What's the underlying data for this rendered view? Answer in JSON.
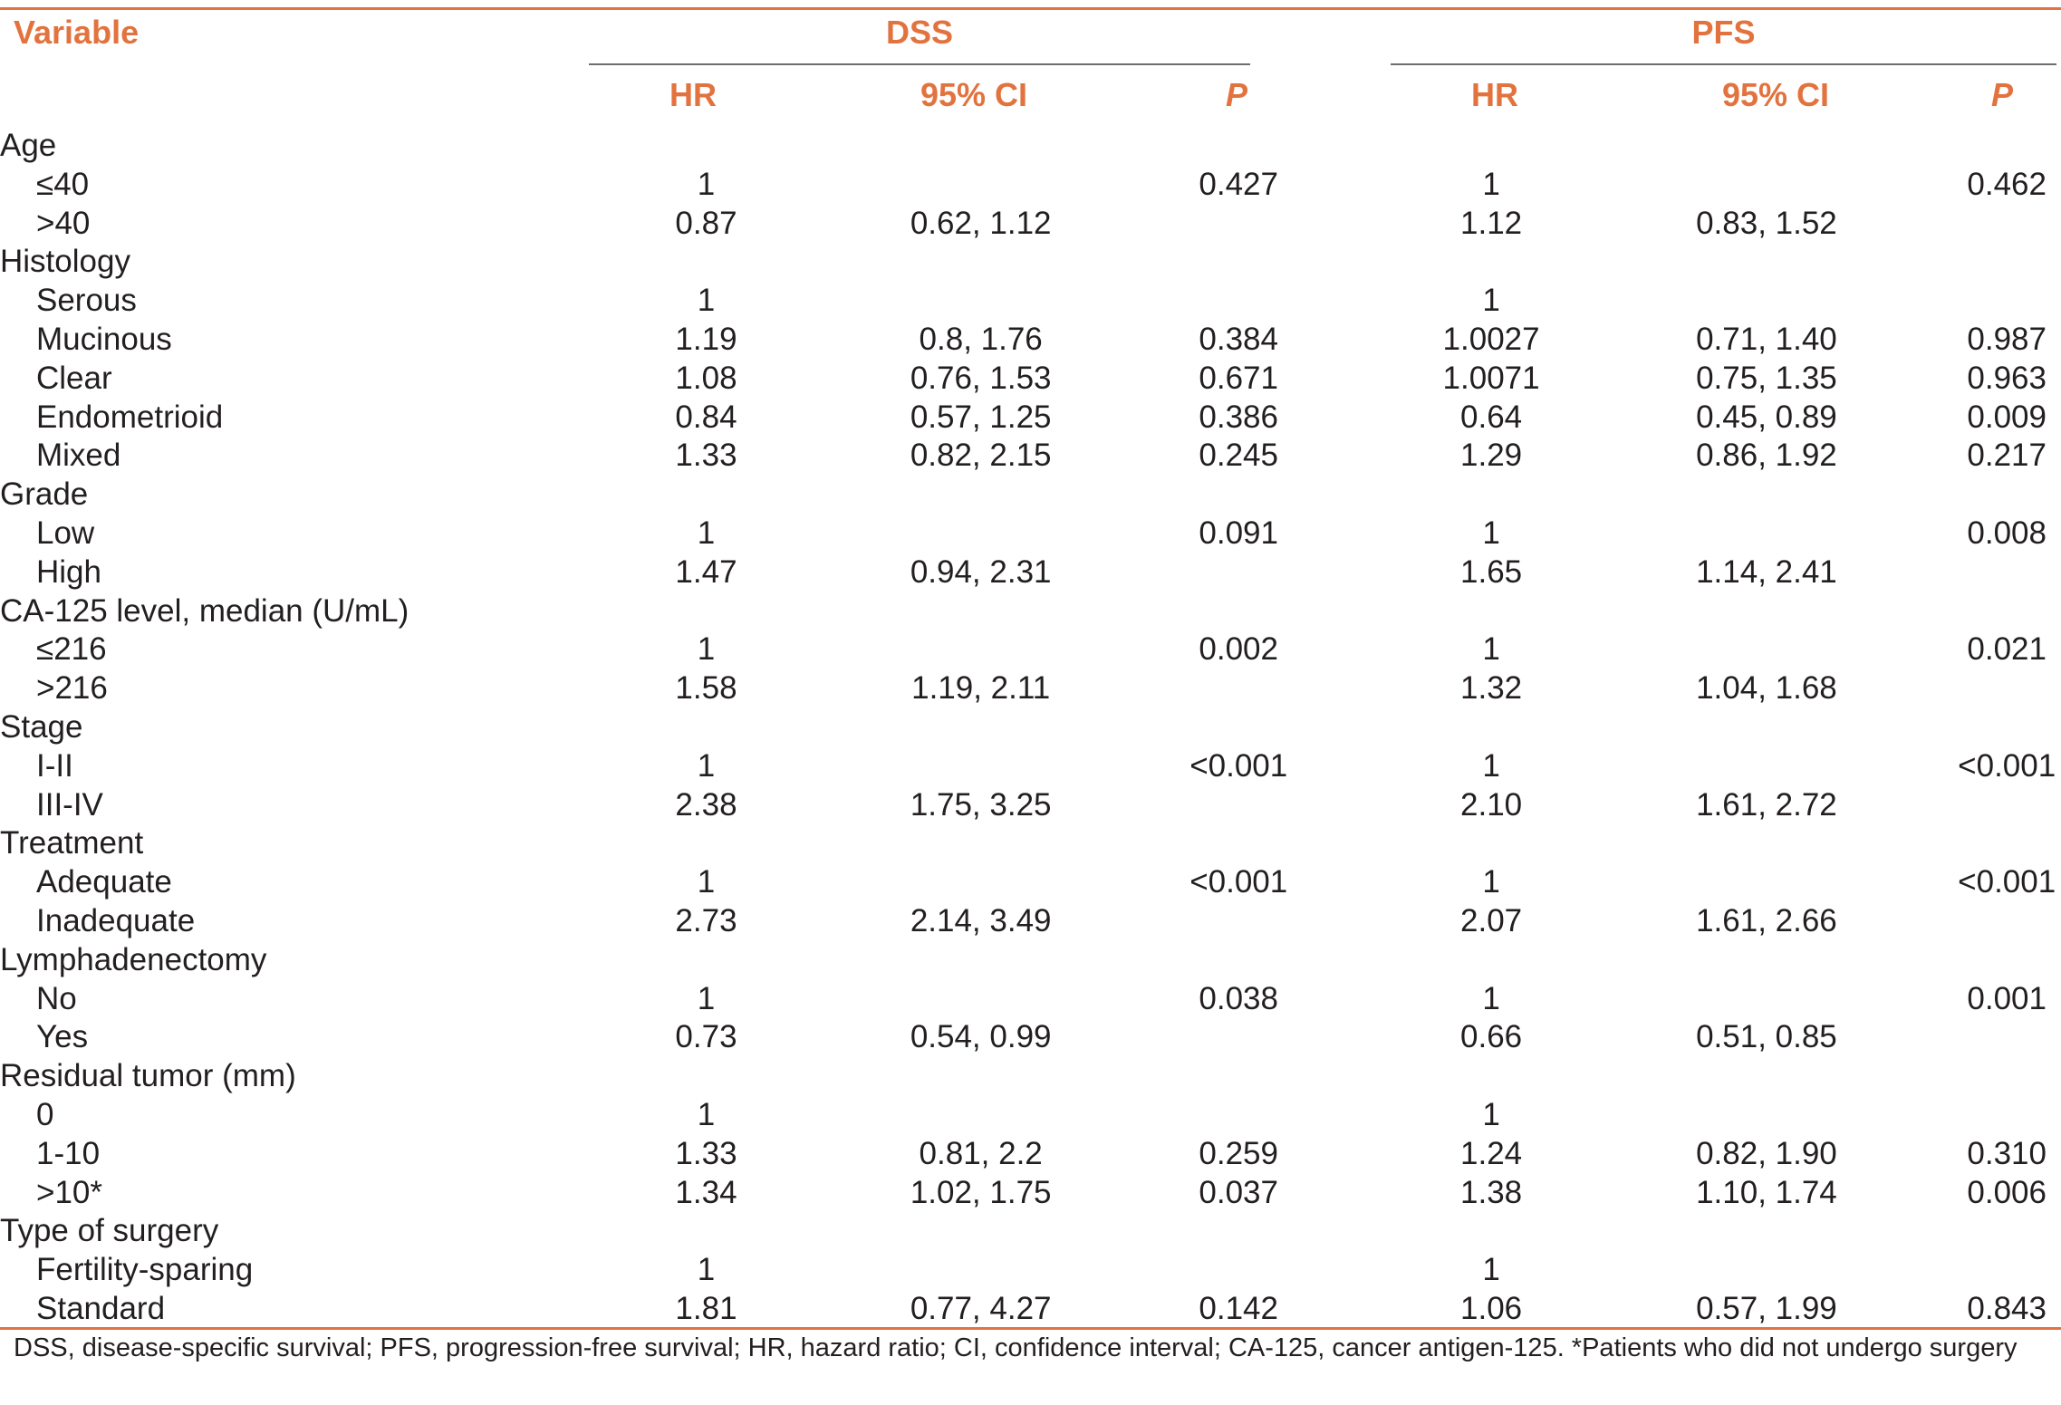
{
  "accent_color": "#e2733f",
  "header": {
    "variable": "Variable",
    "group_dss": "DSS",
    "group_pfs": "PFS",
    "hr": "HR",
    "ci": "95% CI",
    "p": "P"
  },
  "rows": [
    {
      "label": "Age",
      "level": 0,
      "dss_hr": "",
      "dss_ci": "",
      "dss_p": "",
      "pfs_hr": "",
      "pfs_ci": "",
      "pfs_p": ""
    },
    {
      "label": "≤40",
      "level": 1,
      "dss_hr": "1",
      "dss_ci": "",
      "dss_p": "0.427",
      "pfs_hr": "1",
      "pfs_ci": "",
      "pfs_p": "0.462"
    },
    {
      "label": ">40",
      "level": 1,
      "dss_hr": "0.87",
      "dss_ci": "0.62, 1.12",
      "dss_p": "",
      "pfs_hr": "1.12",
      "pfs_ci": "0.83, 1.52",
      "pfs_p": ""
    },
    {
      "label": "Histology",
      "level": 0,
      "dss_hr": "",
      "dss_ci": "",
      "dss_p": "",
      "pfs_hr": "",
      "pfs_ci": "",
      "pfs_p": ""
    },
    {
      "label": "Serous",
      "level": 1,
      "dss_hr": "1",
      "dss_ci": "",
      "dss_p": "",
      "pfs_hr": "1",
      "pfs_ci": "",
      "pfs_p": ""
    },
    {
      "label": "Mucinous",
      "level": 1,
      "dss_hr": "1.19",
      "dss_ci": "0.8, 1.76",
      "dss_p": "0.384",
      "pfs_hr": "1.0027",
      "pfs_ci": "0.71, 1.40",
      "pfs_p": "0.987"
    },
    {
      "label": "Clear",
      "level": 1,
      "dss_hr": "1.08",
      "dss_ci": "0.76, 1.53",
      "dss_p": "0.671",
      "pfs_hr": "1.0071",
      "pfs_ci": "0.75, 1.35",
      "pfs_p": "0.963"
    },
    {
      "label": "Endometrioid",
      "level": 1,
      "dss_hr": "0.84",
      "dss_ci": "0.57, 1.25",
      "dss_p": "0.386",
      "pfs_hr": "0.64",
      "pfs_ci": "0.45, 0.89",
      "pfs_p": "0.009"
    },
    {
      "label": "Mixed",
      "level": 1,
      "dss_hr": "1.33",
      "dss_ci": "0.82, 2.15",
      "dss_p": "0.245",
      "pfs_hr": "1.29",
      "pfs_ci": "0.86, 1.92",
      "pfs_p": "0.217"
    },
    {
      "label": "Grade",
      "level": 0,
      "dss_hr": "",
      "dss_ci": "",
      "dss_p": "",
      "pfs_hr": "",
      "pfs_ci": "",
      "pfs_p": ""
    },
    {
      "label": "Low",
      "level": 1,
      "dss_hr": "1",
      "dss_ci": "",
      "dss_p": "0.091",
      "pfs_hr": "1",
      "pfs_ci": "",
      "pfs_p": "0.008"
    },
    {
      "label": "High",
      "level": 1,
      "dss_hr": "1.47",
      "dss_ci": "0.94, 2.31",
      "dss_p": "",
      "pfs_hr": "1.65",
      "pfs_ci": "1.14, 2.41",
      "pfs_p": ""
    },
    {
      "label": "CA-125 level, median (U/mL)",
      "level": 0,
      "dss_hr": "",
      "dss_ci": "",
      "dss_p": "",
      "pfs_hr": "",
      "pfs_ci": "",
      "pfs_p": ""
    },
    {
      "label": "≤216",
      "level": 1,
      "dss_hr": "1",
      "dss_ci": "",
      "dss_p": "0.002",
      "pfs_hr": "1",
      "pfs_ci": "",
      "pfs_p": "0.021"
    },
    {
      "label": ">216",
      "level": 1,
      "dss_hr": "1.58",
      "dss_ci": "1.19, 2.11",
      "dss_p": "",
      "pfs_hr": "1.32",
      "pfs_ci": "1.04, 1.68",
      "pfs_p": ""
    },
    {
      "label": "Stage",
      "level": 0,
      "dss_hr": "",
      "dss_ci": "",
      "dss_p": "",
      "pfs_hr": "",
      "pfs_ci": "",
      "pfs_p": ""
    },
    {
      "label": "I-II",
      "level": 1,
      "dss_hr": "1",
      "dss_ci": "",
      "dss_p": "<0.001",
      "pfs_hr": "1",
      "pfs_ci": "",
      "pfs_p": "<0.001"
    },
    {
      "label": "III-IV",
      "level": 1,
      "dss_hr": "2.38",
      "dss_ci": "1.75, 3.25",
      "dss_p": "",
      "pfs_hr": "2.10",
      "pfs_ci": "1.61, 2.72",
      "pfs_p": ""
    },
    {
      "label": "Treatment",
      "level": 0,
      "dss_hr": "",
      "dss_ci": "",
      "dss_p": "",
      "pfs_hr": "",
      "pfs_ci": "",
      "pfs_p": ""
    },
    {
      "label": "Adequate",
      "level": 1,
      "dss_hr": "1",
      "dss_ci": "",
      "dss_p": "<0.001",
      "pfs_hr": "1",
      "pfs_ci": "",
      "pfs_p": "<0.001"
    },
    {
      "label": "Inadequate",
      "level": 1,
      "dss_hr": "2.73",
      "dss_ci": "2.14, 3.49",
      "dss_p": "",
      "pfs_hr": "2.07",
      "pfs_ci": "1.61, 2.66",
      "pfs_p": ""
    },
    {
      "label": "Lymphadenectomy",
      "level": 0,
      "dss_hr": "",
      "dss_ci": "",
      "dss_p": "",
      "pfs_hr": "",
      "pfs_ci": "",
      "pfs_p": ""
    },
    {
      "label": "No",
      "level": 1,
      "dss_hr": "1",
      "dss_ci": "",
      "dss_p": "0.038",
      "pfs_hr": "1",
      "pfs_ci": "",
      "pfs_p": "0.001"
    },
    {
      "label": "Yes",
      "level": 1,
      "dss_hr": "0.73",
      "dss_ci": "0.54, 0.99",
      "dss_p": "",
      "pfs_hr": "0.66",
      "pfs_ci": "0.51, 0.85",
      "pfs_p": ""
    },
    {
      "label": "Residual tumor (mm)",
      "level": 0,
      "dss_hr": "",
      "dss_ci": "",
      "dss_p": "",
      "pfs_hr": "",
      "pfs_ci": "",
      "pfs_p": ""
    },
    {
      "label": "0",
      "level": 1,
      "dss_hr": "1",
      "dss_ci": "",
      "dss_p": "",
      "pfs_hr": "1",
      "pfs_ci": "",
      "pfs_p": ""
    },
    {
      "label": "1-10",
      "level": 1,
      "dss_hr": "1.33",
      "dss_ci": "0.81, 2.2",
      "dss_p": "0.259",
      "pfs_hr": "1.24",
      "pfs_ci": "0.82, 1.90",
      "pfs_p": "0.310"
    },
    {
      "label": ">10*",
      "level": 1,
      "dss_hr": "1.34",
      "dss_ci": "1.02, 1.75",
      "dss_p": "0.037",
      "pfs_hr": "1.38",
      "pfs_ci": "1.10, 1.74",
      "pfs_p": "0.006"
    },
    {
      "label": "Type of surgery",
      "level": 0,
      "dss_hr": "",
      "dss_ci": "",
      "dss_p": "",
      "pfs_hr": "",
      "pfs_ci": "",
      "pfs_p": ""
    },
    {
      "label": "Fertility-sparing",
      "level": 1,
      "dss_hr": "1",
      "dss_ci": "",
      "dss_p": "",
      "pfs_hr": "1",
      "pfs_ci": "",
      "pfs_p": ""
    },
    {
      "label": "Standard",
      "level": 1,
      "dss_hr": "1.81",
      "dss_ci": "0.77, 4.27",
      "dss_p": "0.142",
      "pfs_hr": "1.06",
      "pfs_ci": "0.57, 1.99",
      "pfs_p": "0.843"
    }
  ],
  "footnote": "DSS, disease-specific survival; PFS, progression-free survival; HR, hazard ratio; CI, confidence interval; CA-125, cancer antigen-125. *Patients who did not undergo surgery"
}
